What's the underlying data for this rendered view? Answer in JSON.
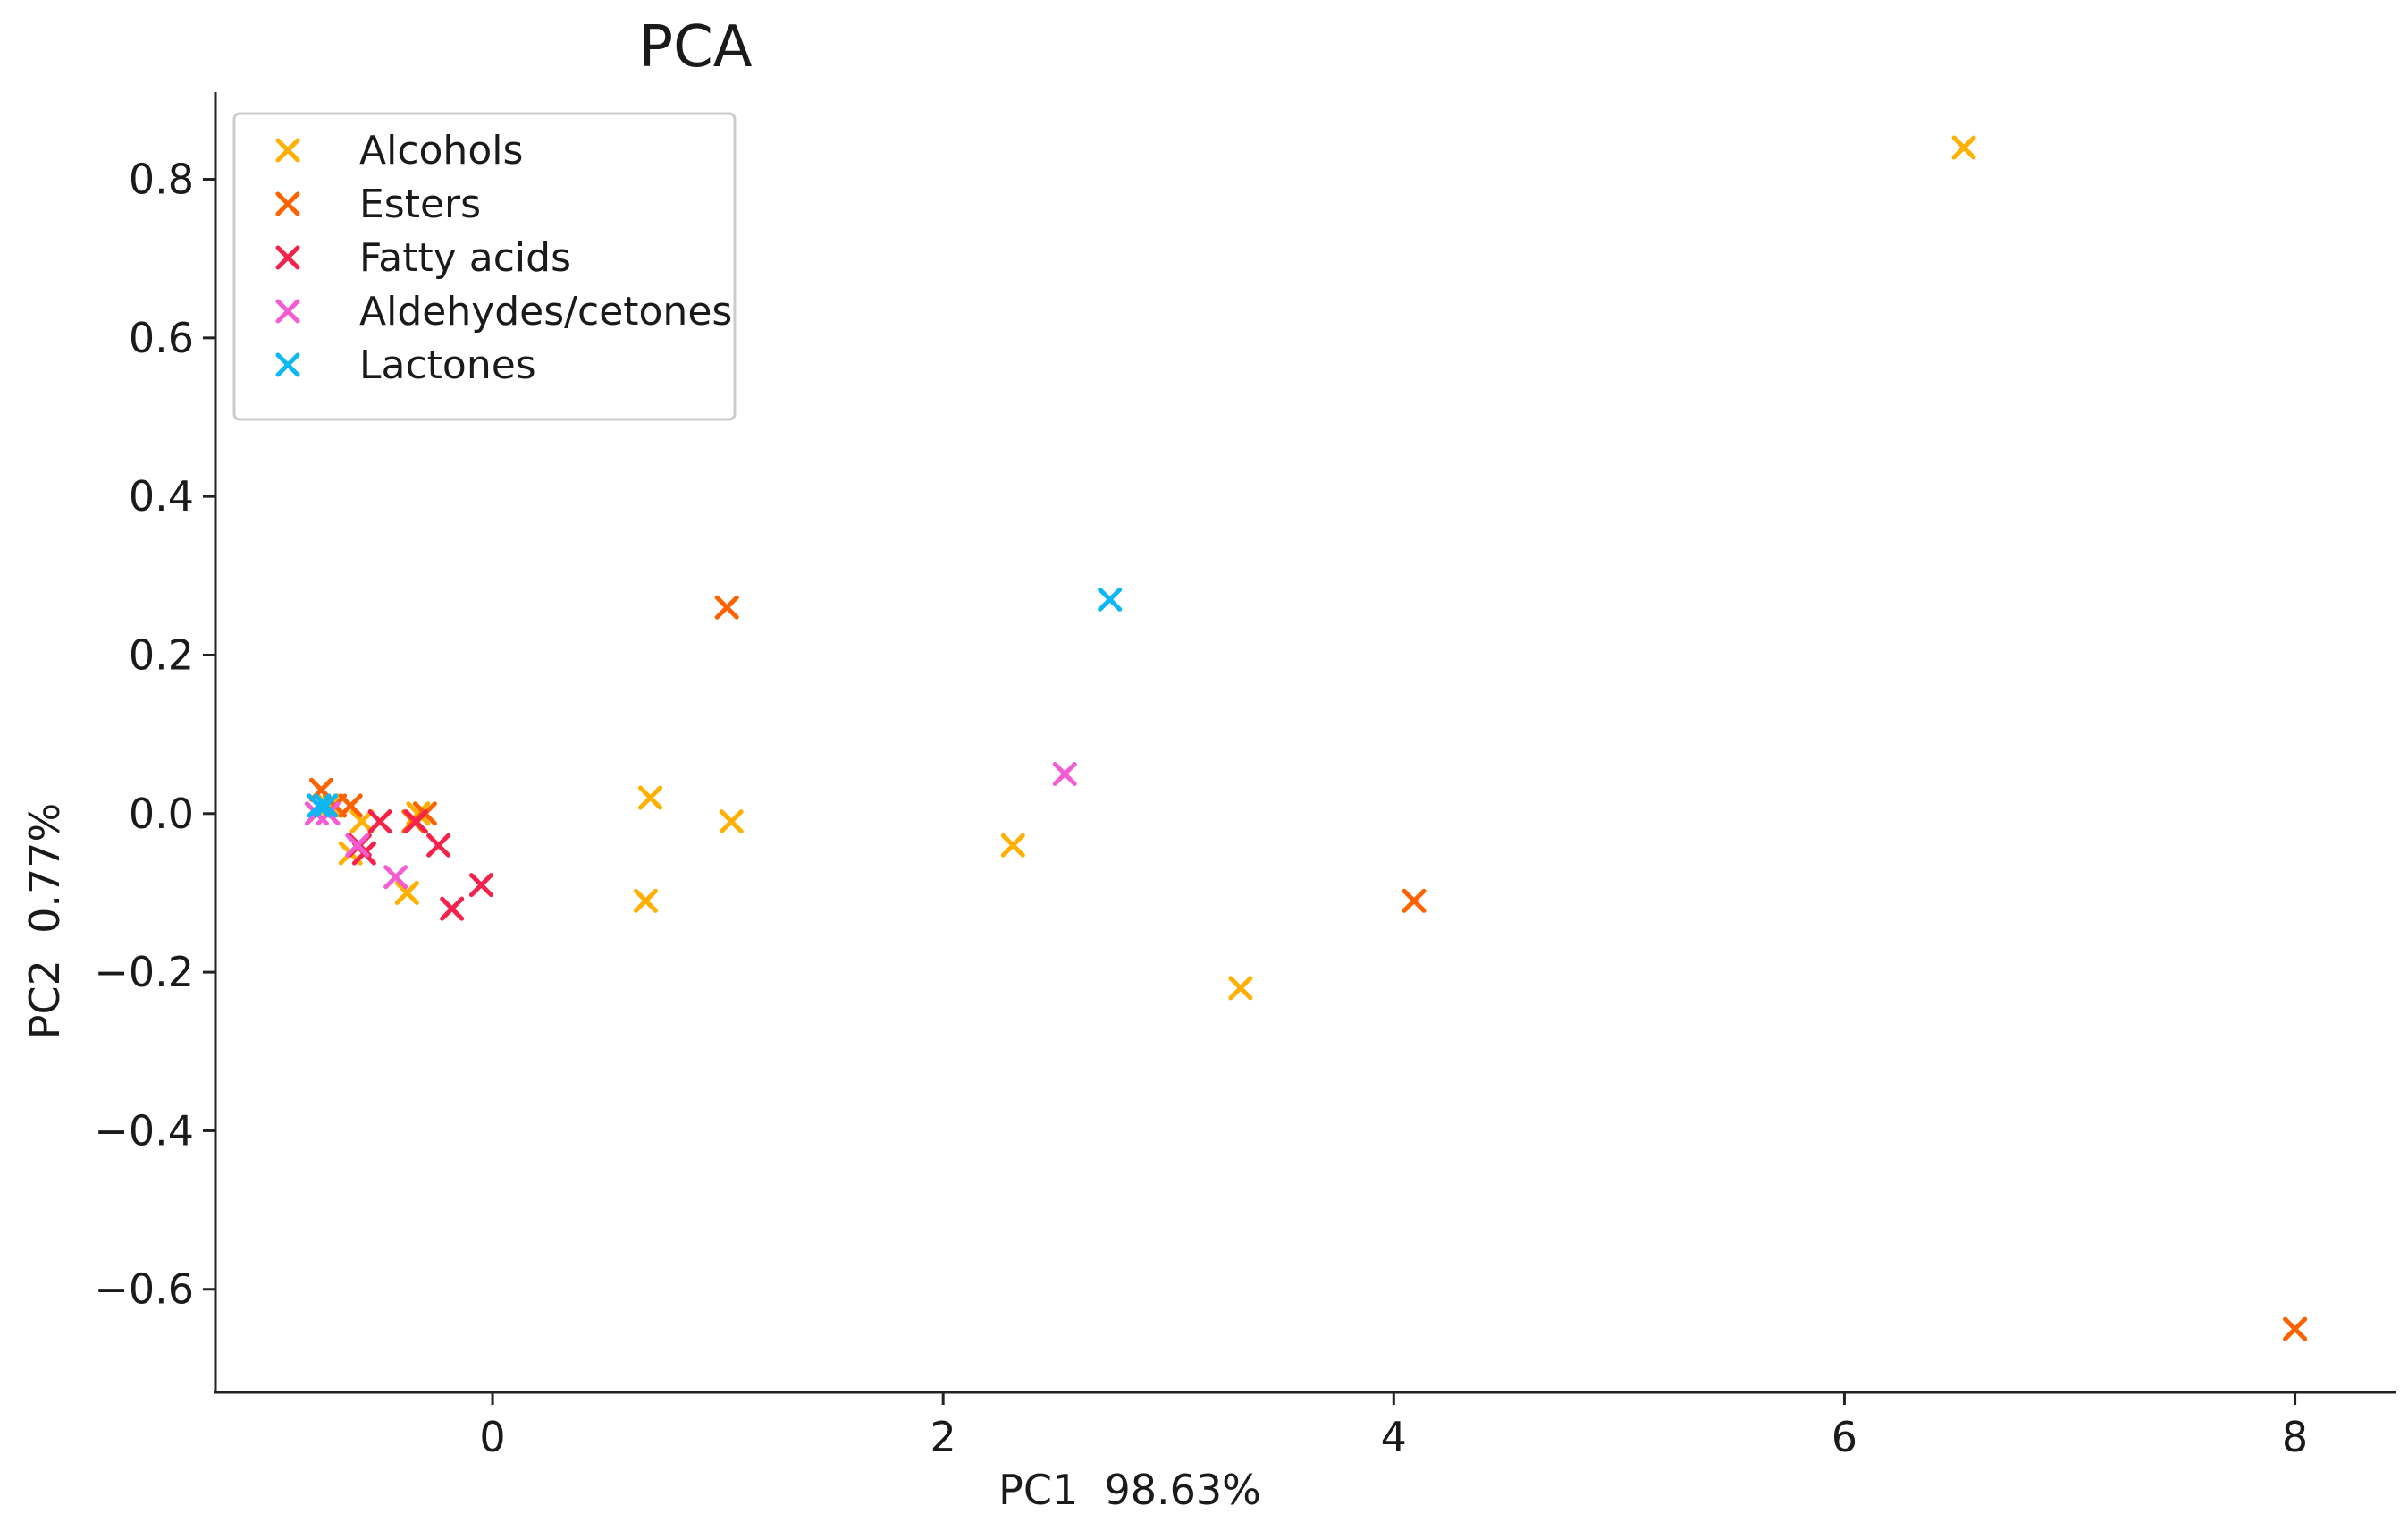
{
  "chart_data": {
    "type": "scatter",
    "title": "PCA",
    "xlabel": "PC1  98.63%",
    "ylabel": "PC2  0.77%",
    "xlim": [
      -1.23,
      8.45
    ],
    "ylim": [
      -0.73,
      0.91
    ],
    "xticks": [
      0,
      2,
      4,
      6,
      8
    ],
    "yticks": [
      0.8,
      0.6,
      0.4,
      0.2,
      0.0,
      -0.2,
      -0.4,
      -0.6
    ],
    "xtick_labels": [
      "0",
      "2",
      "4",
      "6",
      "8"
    ],
    "ytick_labels": [
      "0.8",
      "0.6",
      "0.4",
      "0.2",
      "0.0",
      "−0.2",
      "−0.4",
      "−0.6"
    ],
    "grid": false,
    "legend_position": "top-left",
    "marker": "x",
    "series": [
      {
        "name": "Alcohols",
        "color": "#FFB000",
        "points": [
          [
            6.53,
            0.84
          ],
          [
            0.7,
            0.02
          ],
          [
            1.06,
            -0.01
          ],
          [
            0.68,
            -0.11
          ],
          [
            2.31,
            -0.04
          ],
          [
            3.32,
            -0.22
          ],
          [
            -0.38,
            -0.1
          ],
          [
            -0.63,
            -0.05
          ],
          [
            -0.58,
            -0.01
          ],
          [
            -0.5,
            -0.01
          ],
          [
            -0.33,
            0.0
          ],
          [
            -0.73,
            0.01
          ]
        ]
      },
      {
        "name": "Esters",
        "color": "#FE6100",
        "points": [
          [
            1.04,
            0.26
          ],
          [
            4.09,
            -0.11
          ],
          [
            8.0,
            -0.65
          ],
          [
            -0.76,
            0.03
          ],
          [
            -0.63,
            0.01
          ],
          [
            -0.35,
            -0.01
          ],
          [
            -0.3,
            0.0
          ],
          [
            -0.7,
            0.01
          ]
        ]
      },
      {
        "name": "Fatty acids",
        "color": "#F5224B",
        "points": [
          [
            -0.05,
            -0.09
          ],
          [
            -0.18,
            -0.12
          ],
          [
            -0.24,
            -0.04
          ],
          [
            -0.57,
            -0.05
          ],
          [
            -0.5,
            -0.01
          ],
          [
            -0.34,
            -0.01
          ],
          [
            -0.59,
            -0.04
          ]
        ]
      },
      {
        "name": "Aldehydes/cetones",
        "color": "#F45CD2",
        "points": [
          [
            2.54,
            0.05
          ],
          [
            -0.43,
            -0.08
          ],
          [
            -0.6,
            -0.04
          ],
          [
            -0.73,
            0.0
          ],
          [
            -0.78,
            0.0
          ]
        ]
      },
      {
        "name": "Lactones",
        "color": "#0BB7F5",
        "points": [
          [
            2.74,
            0.27
          ],
          [
            -0.77,
            0.01
          ],
          [
            -0.74,
            0.01
          ]
        ]
      }
    ]
  }
}
